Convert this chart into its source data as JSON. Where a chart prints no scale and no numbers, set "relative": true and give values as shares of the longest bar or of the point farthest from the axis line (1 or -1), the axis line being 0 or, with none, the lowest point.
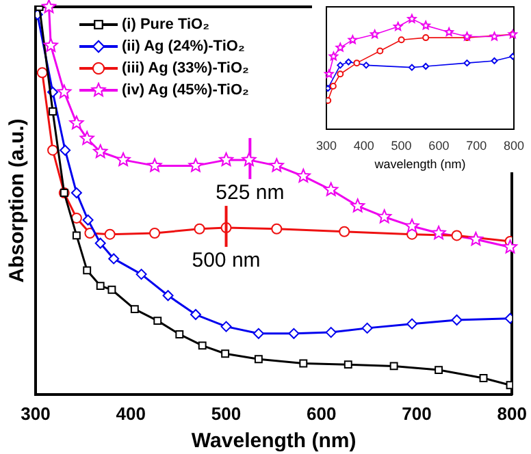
{
  "chart_data": [
    {
      "type": "line",
      "xlabel": "Wavelength (nm)",
      "ylabel": "Absorption (a.u.)",
      "relative": true,
      "xlim": [
        300,
        800
      ],
      "xticks": [
        300,
        400,
        500,
        600,
        700,
        800
      ],
      "legend": "top left",
      "line_style": "solid",
      "annotations": [
        {
          "text": "525 nm",
          "x": 525,
          "y": 0.605
        },
        {
          "text": "500 nm",
          "x": 500,
          "y": 0.43
        }
      ],
      "series": [
        {
          "name": "(i) Pure TiO₂",
          "color": "#000000",
          "marker": "square",
          "x": [
            304,
            318,
            330,
            343,
            354,
            368,
            380,
            404,
            428,
            451,
            475,
            499,
            534,
            581,
            628,
            676,
            723,
            770,
            798
          ],
          "values": [
            1,
            0.73,
            0.52,
            0.41,
            0.32,
            0.28,
            0.27,
            0.22,
            0.19,
            0.155,
            0.126,
            0.105,
            0.091,
            0.08,
            0.077,
            0.073,
            0.063,
            0.042,
            0.024
          ]
        },
        {
          "name": "(ii) Ag (24%)-TiO₂",
          "color": "#0000ee",
          "marker": "diamond",
          "x": [
            302,
            318,
            331,
            343,
            355,
            368,
            382,
            411,
            439,
            468,
            500,
            534,
            571,
            610,
            648,
            695,
            742,
            798
          ],
          "values": [
            0.98,
            0.78,
            0.63,
            0.52,
            0.45,
            0.39,
            0.35,
            0.31,
            0.255,
            0.206,
            0.175,
            0.157,
            0.157,
            0.16,
            0.171,
            0.182,
            0.192,
            0.196
          ]
        },
        {
          "name": "(iii) Ag (33%)-TiO₂",
          "color": "#ee1111",
          "marker": "circle",
          "x": [
            307,
            318,
            330,
            343,
            357,
            378,
            425,
            472,
            500,
            553,
            624,
            695,
            742,
            798
          ],
          "values": [
            0.83,
            0.63,
            0.52,
            0.455,
            0.416,
            0.413,
            0.416,
            0.427,
            0.43,
            0.427,
            0.42,
            0.413,
            0.41,
            0.395
          ]
        },
        {
          "name": "(iv) Ag (45%)-TiO₂",
          "color": "#ee00ee",
          "marker": "star",
          "x": [
            314,
            316,
            330,
            343,
            354,
            368,
            392,
            425,
            468,
            500,
            524,
            553,
            581,
            610,
            638,
            666,
            695,
            723,
            762,
            798
          ],
          "values": [
            1,
            0.9,
            0.78,
            0.7,
            0.66,
            0.626,
            0.605,
            0.59,
            0.59,
            0.605,
            0.605,
            0.59,
            0.563,
            0.528,
            0.486,
            0.458,
            0.434,
            0.416,
            0.4,
            0.38
          ]
        }
      ]
    },
    {
      "type": "line",
      "xlabel": "wavelength (nm)",
      "relative": true,
      "xlim": [
        300,
        800
      ],
      "xticks": [
        300,
        400,
        500,
        600,
        700,
        800
      ],
      "series": [
        {
          "color": "#ee00ee",
          "marker": "star",
          "x": [
            307,
            319,
            337,
            370,
            429,
            491,
            528,
            565,
            627,
            675,
            748,
            797
          ],
          "values": [
            0.5,
            0.66,
            0.74,
            0.81,
            0.86,
            0.93,
            1,
            0.94,
            0.88,
            0.84,
            0.84,
            0.86
          ]
        },
        {
          "color": "#ee1111",
          "marker": "circle",
          "x": [
            304,
            318,
            337,
            381,
            443,
            500,
            565,
            675,
            797
          ],
          "values": [
            0.26,
            0.39,
            0.5,
            0.6,
            0.71,
            0.81,
            0.83,
            0.83,
            0.86
          ]
        },
        {
          "color": "#0000ee",
          "marker": "diamond",
          "x": [
            304,
            337,
            359,
            406,
            528,
            565,
            675,
            748,
            797
          ],
          "values": [
            0.37,
            0.58,
            0.61,
            0.58,
            0.56,
            0.57,
            0.6,
            0.62,
            0.66
          ]
        }
      ]
    }
  ]
}
